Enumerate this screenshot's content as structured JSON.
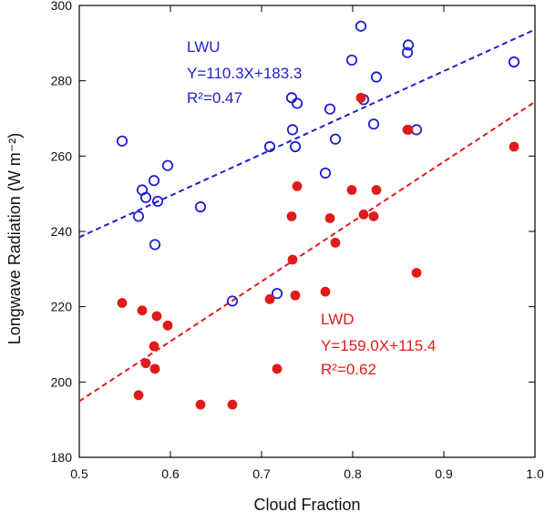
{
  "chart_data": {
    "type": "scatter",
    "xlabel": "Cloud Fraction",
    "ylabel": "Longwave Radiation (W m⁻²)",
    "xlim": [
      0.5,
      1.0
    ],
    "ylim": [
      180,
      300
    ],
    "xticks": [
      "0.5",
      "0.6",
      "0.7",
      "0.8",
      "0.9",
      "1.0"
    ],
    "yticks": [
      "180",
      "200",
      "220",
      "240",
      "260",
      "280",
      "300"
    ],
    "grid": false,
    "series": [
      {
        "name": "LWU",
        "color": "#1f1fd0",
        "marker": "open-circle",
        "equation": "Y=110.3X+183.3",
        "r2": "R²=0.47",
        "fit": {
          "slope": 110.3,
          "intercept": 183.3
        },
        "points": [
          [
            0.547,
            264
          ],
          [
            0.565,
            244
          ],
          [
            0.569,
            251
          ],
          [
            0.573,
            249
          ],
          [
            0.582,
            253.5
          ],
          [
            0.583,
            236.5
          ],
          [
            0.586,
            248
          ],
          [
            0.597,
            257.5
          ],
          [
            0.633,
            246.5
          ],
          [
            0.668,
            221.5
          ],
          [
            0.709,
            262.5
          ],
          [
            0.717,
            223.5
          ],
          [
            0.733,
            275.5
          ],
          [
            0.734,
            267
          ],
          [
            0.737,
            262.5
          ],
          [
            0.739,
            274
          ],
          [
            0.77,
            255.5
          ],
          [
            0.775,
            272.5
          ],
          [
            0.781,
            264.5
          ],
          [
            0.799,
            285.5
          ],
          [
            0.809,
            294.5
          ],
          [
            0.812,
            275
          ],
          [
            0.823,
            268.5
          ],
          [
            0.826,
            281
          ],
          [
            0.86,
            287.5
          ],
          [
            0.861,
            289.5
          ],
          [
            0.87,
            267
          ],
          [
            0.977,
            285
          ]
        ]
      },
      {
        "name": "LWD",
        "color": "#e01b1b",
        "marker": "filled-circle",
        "equation": "Y=159.0X+115.4",
        "r2": "R²=0.62",
        "fit": {
          "slope": 159.0,
          "intercept": 115.4
        },
        "points": [
          [
            0.547,
            221
          ],
          [
            0.565,
            196.5
          ],
          [
            0.569,
            219
          ],
          [
            0.573,
            205
          ],
          [
            0.582,
            209.5
          ],
          [
            0.583,
            203.5
          ],
          [
            0.585,
            217.5
          ],
          [
            0.597,
            215
          ],
          [
            0.633,
            194
          ],
          [
            0.668,
            194
          ],
          [
            0.709,
            222
          ],
          [
            0.717,
            203.5
          ],
          [
            0.733,
            244
          ],
          [
            0.734,
            232.5
          ],
          [
            0.737,
            223
          ],
          [
            0.739,
            252
          ],
          [
            0.77,
            224
          ],
          [
            0.775,
            243.5
          ],
          [
            0.781,
            237
          ],
          [
            0.799,
            251
          ],
          [
            0.809,
            275.5
          ],
          [
            0.812,
            244.5
          ],
          [
            0.823,
            244
          ],
          [
            0.826,
            251
          ],
          [
            0.86,
            267
          ],
          [
            0.861,
            267
          ],
          [
            0.87,
            229
          ],
          [
            0.977,
            262.5
          ]
        ]
      }
    ]
  }
}
